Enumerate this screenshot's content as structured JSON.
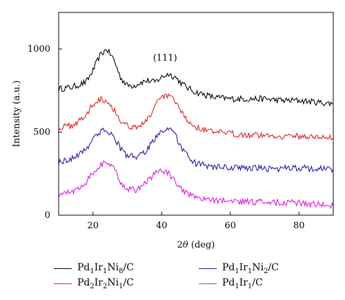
{
  "chart_data": {
    "type": "line",
    "xlabel": "2θ (deg)",
    "ylabel": "Intensity (a.u.)",
    "xlim": [
      10,
      90
    ],
    "ylim": [
      0,
      1220
    ],
    "xticks": [
      20,
      40,
      60,
      80
    ],
    "yticks": [
      0,
      500,
      1000
    ],
    "grid": false,
    "legend_position": "bottom",
    "annotations": [
      {
        "text": "(111)",
        "x": 41,
        "y": 930
      }
    ],
    "series": [
      {
        "name": "Pd1Ir1Ni8/C",
        "label_parts": [
          [
            "Pd",
            ""
          ],
          [
            "1",
            "sub"
          ],
          [
            "Ir",
            ""
          ],
          [
            "1",
            "sub"
          ],
          [
            "Ni",
            ""
          ],
          [
            "8",
            "sub"
          ],
          [
            "/C",
            ""
          ]
        ],
        "color": "#000000",
        "x": [
          10,
          14,
          18,
          20,
          22,
          24,
          26,
          28,
          30,
          32,
          34,
          36,
          38,
          40,
          42,
          44,
          46,
          48,
          50,
          55,
          60,
          65,
          70,
          75,
          80,
          85,
          90
        ],
        "y": [
          760,
          770,
          800,
          870,
          960,
          1000,
          940,
          830,
          780,
          780,
          800,
          810,
          800,
          830,
          850,
          830,
          790,
          760,
          740,
          710,
          700,
          700,
          700,
          690,
          690,
          680,
          670
        ]
      },
      {
        "name": "Pd2Ir2Ni1/C",
        "label_parts": [
          [
            "Pd",
            ""
          ],
          [
            "2",
            "sub"
          ],
          [
            "Ir",
            ""
          ],
          [
            "2",
            "sub"
          ],
          [
            "Ni",
            ""
          ],
          [
            "1",
            "sub"
          ],
          [
            "/C",
            ""
          ]
        ],
        "color": "#e02020",
        "x": [
          10,
          14,
          18,
          20,
          22,
          24,
          26,
          28,
          30,
          32,
          34,
          36,
          38,
          40,
          42,
          44,
          46,
          48,
          50,
          55,
          60,
          65,
          70,
          75,
          80,
          85,
          90
        ],
        "y": [
          525,
          540,
          600,
          670,
          700,
          690,
          640,
          570,
          540,
          530,
          540,
          580,
          650,
          710,
          720,
          680,
          610,
          560,
          530,
          500,
          490,
          485,
          480,
          475,
          475,
          470,
          465
        ]
      },
      {
        "name": "Pd1Ir1Ni2/C",
        "label_parts": [
          [
            "Pd",
            ""
          ],
          [
            "1",
            "sub"
          ],
          [
            "Ir",
            ""
          ],
          [
            "1",
            "sub"
          ],
          [
            "Ni",
            ""
          ],
          [
            "2",
            "sub"
          ],
          [
            "/C",
            ""
          ]
        ],
        "color": "#1a1aa8",
        "x": [
          10,
          14,
          18,
          20,
          22,
          24,
          26,
          28,
          30,
          32,
          34,
          36,
          38,
          40,
          42,
          44,
          46,
          48,
          50,
          55,
          60,
          65,
          70,
          75,
          80,
          85,
          90
        ],
        "y": [
          320,
          340,
          400,
          460,
          500,
          510,
          480,
          400,
          360,
          350,
          360,
          400,
          460,
          510,
          520,
          480,
          400,
          340,
          310,
          290,
          285,
          285,
          280,
          280,
          285,
          280,
          275
        ]
      },
      {
        "name": "Pd1Ir1/C",
        "label_parts": [
          [
            "Pd",
            ""
          ],
          [
            "1",
            "sub"
          ],
          [
            "Ir",
            ""
          ],
          [
            "1",
            "sub"
          ],
          [
            "/C",
            ""
          ]
        ],
        "color": "#d81ad8",
        "x": [
          10,
          14,
          18,
          20,
          22,
          24,
          26,
          28,
          30,
          32,
          34,
          36,
          38,
          40,
          42,
          44,
          46,
          48,
          50,
          55,
          60,
          65,
          70,
          75,
          80,
          85,
          90
        ],
        "y": [
          125,
          140,
          200,
          260,
          300,
          320,
          280,
          200,
          160,
          150,
          170,
          210,
          250,
          270,
          250,
          200,
          150,
          120,
          100,
          90,
          85,
          80,
          80,
          75,
          75,
          65,
          55
        ]
      }
    ]
  }
}
